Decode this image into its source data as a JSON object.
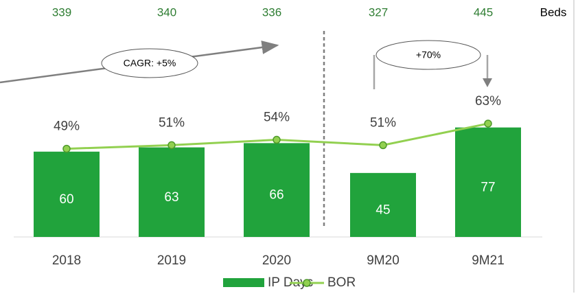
{
  "chart_data": {
    "type": "bar",
    "categories": [
      "2018",
      "2019",
      "2020",
      "9M20",
      "9M21"
    ],
    "series": [
      {
        "name": "IP Days",
        "type": "bar",
        "color": "#21a33c",
        "values": [
          60,
          63,
          66,
          45,
          77
        ]
      },
      {
        "name": "BOR",
        "type": "line",
        "axis": "y2",
        "color": "#92d050",
        "values": [
          49,
          51,
          54,
          51,
          63
        ],
        "value_labels": [
          "49%",
          "51%",
          "54%",
          "51%",
          "63%"
        ]
      }
    ],
    "ylim": [
      0,
      100
    ],
    "y2lim": [
      0,
      100
    ],
    "beds": {
      "label": "Beds",
      "values": [
        339,
        340,
        336,
        327,
        445
      ]
    },
    "annotations": [
      "CAGR: +5%",
      "+70%"
    ],
    "legend": "bottom"
  }
}
